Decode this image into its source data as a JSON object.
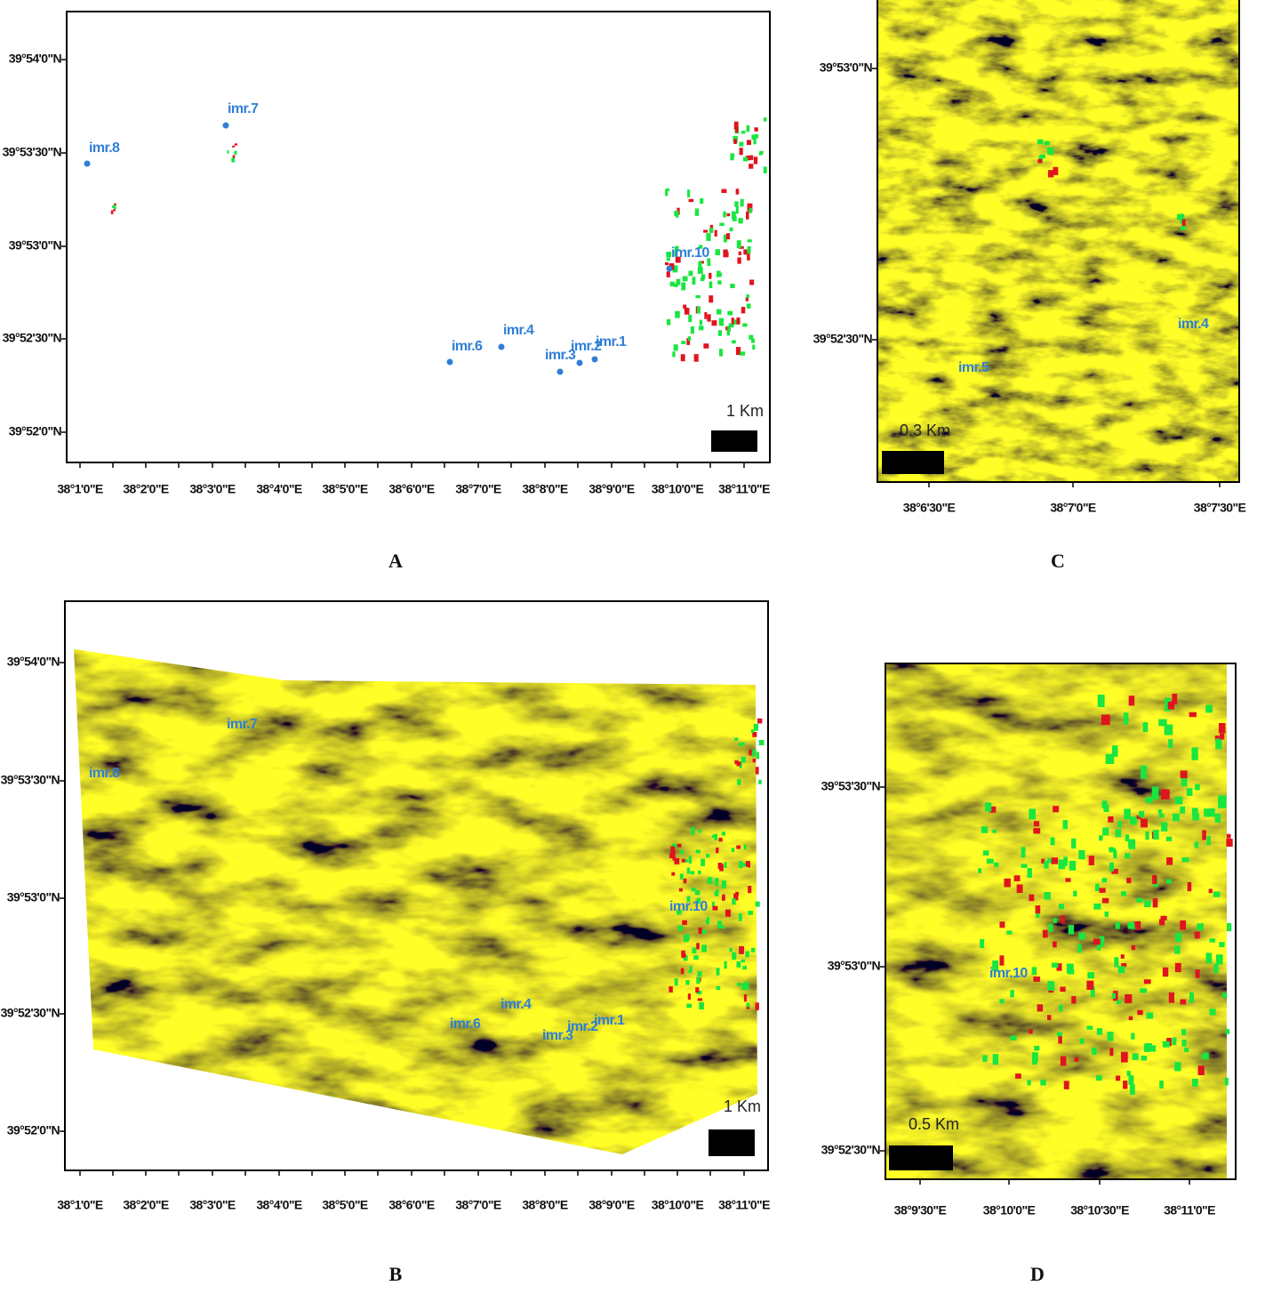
{
  "panels": [
    {
      "letter": "A",
      "scale": "1 Km",
      "yticks": [
        "39°54'0\"N",
        "39°53'30\"N",
        "39°53'0\"N",
        "39°52'30\"N",
        "39°52'0\"N"
      ],
      "xticks": [
        "38°1'0\"E",
        "38°2'0\"E",
        "38°3'0\"E",
        "38°4'0\"E",
        "38°5'0\"E",
        "38°6'0\"E",
        "38°7'0\"E",
        "38°8'0\"E",
        "38°9'0\"E",
        "38°10'0\"E",
        "38°11'0\"E"
      ],
      "sites": [
        "imr.8",
        "imr.7",
        "imr.10",
        "imr.6",
        "imr.4",
        "imr.3",
        "imr.2",
        "imr.1"
      ]
    },
    {
      "letter": "B",
      "scale": "1 Km",
      "yticks": [
        "39°54'0\"N",
        "39°53'30\"N",
        "39°53'0\"N",
        "39°52'30\"N",
        "39°52'0\"N"
      ],
      "xticks": [
        "38°1'0\"E",
        "38°2'0\"E",
        "38°3'0\"E",
        "38°4'0\"E",
        "38°5'0\"E",
        "38°6'0\"E",
        "38°7'0\"E",
        "38°8'0\"E",
        "38°9'0\"E",
        "38°10'0\"E",
        "38°11'0\"E"
      ],
      "sites": [
        "imr.8",
        "imr.7",
        "imr.10",
        "imr.6",
        "imr.4",
        "imr.3",
        "imr.2",
        "imr.1"
      ]
    },
    {
      "letter": "C",
      "scale": "0.3 Km",
      "yticks": [
        "39°53'0\"N",
        "39°52'30\"N"
      ],
      "xticks": [
        "38°6'30\"E",
        "38°7'0\"E",
        "38°7'30\"E"
      ],
      "sites": [
        "imr.4",
        "imr.5"
      ]
    },
    {
      "letter": "D",
      "scale": "0.5 Km",
      "yticks": [
        "39°53'30\"N",
        "39°53'0\"N",
        "39°52'30\"N"
      ],
      "xticks": [
        "38°9'30\"E",
        "38°10'0\"E",
        "38°10'30\"E",
        "38°11'0\"E"
      ],
      "sites": [
        "imr.10"
      ]
    }
  ]
}
